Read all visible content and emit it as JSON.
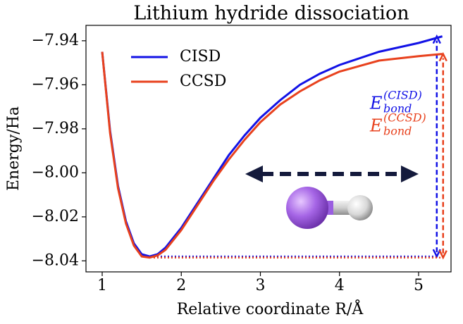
{
  "chart_data": {
    "type": "line",
    "title": "Lithium hydride dissociation",
    "x_label": "Relative coordinate R/Å",
    "y_label": "Energy/Ha",
    "x": [
      1,
      1.1,
      1.2,
      1.3,
      1.4,
      1.5,
      1.6,
      1.7,
      1.8,
      2.0,
      2.2,
      2.4,
      2.6,
      2.8,
      3.0,
      3.25,
      3.5,
      3.75,
      4.0,
      4.5,
      5.0,
      5.3
    ],
    "series": [
      {
        "name": "CISD",
        "color": "#1212e6",
        "values": [
          -7.945,
          -7.981,
          -8.006,
          -8.022,
          -8.032,
          -8.037,
          -8.038,
          -8.037,
          -8.034,
          -8.025,
          -8.014,
          -8.003,
          -7.992,
          -7.983,
          -7.975,
          -7.967,
          -7.96,
          -7.955,
          -7.951,
          -7.945,
          -7.941,
          -7.938
        ]
      },
      {
        "name": "CCSD",
        "color": "#e8411d",
        "values": [
          -7.945,
          -7.982,
          -8.007,
          -8.023,
          -8.033,
          -8.038,
          -8.0385,
          -8.0375,
          -8.035,
          -8.026,
          -8.015,
          -8.004,
          -7.994,
          -7.985,
          -7.977,
          -7.969,
          -7.963,
          -7.958,
          -7.954,
          -7.949,
          -7.947,
          -7.946
        ]
      }
    ],
    "xlim": [
      0.795,
      5.41
    ],
    "ylim": [
      -8.045,
      -7.933
    ],
    "xticks": [
      1,
      2,
      3,
      4,
      5
    ],
    "yticks": [
      {
        "value": -7.94,
        "label": "−7.94"
      },
      {
        "value": -7.96,
        "label": "−7.96"
      },
      {
        "value": -7.98,
        "label": "−7.98"
      },
      {
        "value": -8.0,
        "label": "−8.00"
      },
      {
        "value": -8.02,
        "label": "−8.02"
      },
      {
        "value": -8.04,
        "label": "−8.04"
      }
    ],
    "grid": false,
    "legend": "upper left",
    "annotations": [
      {
        "base": "E",
        "sub": "bond",
        "sup": "(CISD)",
        "color": "#1212e6"
      },
      {
        "base": "E",
        "sub": "bond",
        "sup": "(CCSD)",
        "color": "#e8411d"
      }
    ]
  }
}
